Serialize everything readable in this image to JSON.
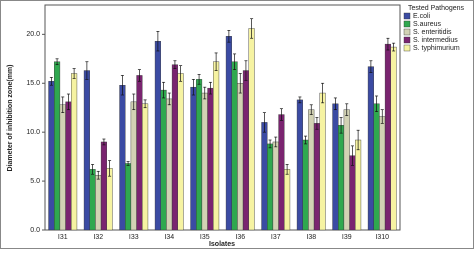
{
  "chart_data": {
    "type": "bar",
    "y_label": "Diameter of inhibition zone(mm)",
    "x_label": "Isolates",
    "legend_title": "Tested Pathogens",
    "legend": "right",
    "categories": [
      "I31",
      "I32",
      "I33",
      "I34",
      "I35",
      "I36",
      "I37",
      "I38",
      "I39",
      "I310"
    ],
    "series": [
      {
        "name": "E.coli",
        "color": "#3b4ba3",
        "values": [
          15.2,
          16.3,
          14.8,
          19.3,
          14.6,
          19.8,
          11.0,
          13.3,
          12.9,
          16.7
        ],
        "errors": [
          0.4,
          0.9,
          1.0,
          1.0,
          0.8,
          0.6,
          1.0,
          0.3,
          0.6,
          0.6
        ]
      },
      {
        "name": "S.aureus",
        "color": "#2fa84f",
        "values": [
          17.2,
          6.2,
          6.8,
          14.3,
          15.4,
          17.2,
          8.8,
          9.2,
          10.7,
          12.9
        ],
        "errors": [
          0.3,
          0.5,
          0.2,
          0.8,
          0.5,
          0.8,
          0.4,
          0.4,
          0.8,
          0.8
        ]
      },
      {
        "name": "S. enteritidis",
        "color": "#d2d2b4",
        "values": [
          12.8,
          5.6,
          13.1,
          13.4,
          14.0,
          15.0,
          9.0,
          12.3,
          12.3,
          11.6
        ],
        "errors": [
          0.8,
          0.4,
          0.8,
          0.6,
          0.6,
          1.0,
          0.5,
          0.5,
          0.6,
          0.7
        ]
      },
      {
        "name": "S. intermedius",
        "color": "#7a2470",
        "values": [
          13.1,
          9.0,
          15.8,
          16.9,
          14.5,
          16.3,
          11.8,
          10.9,
          7.6,
          19.0
        ],
        "errors": [
          0.8,
          0.3,
          0.6,
          0.4,
          0.6,
          1.0,
          0.6,
          0.6,
          1.0,
          0.6
        ]
      },
      {
        "name": "S. typhimurium",
        "color": "#f6f3a2",
        "values": [
          16.0,
          6.3,
          12.9,
          16.0,
          17.2,
          20.6,
          6.2,
          14.0,
          9.2,
          18.7
        ],
        "errors": [
          0.5,
          0.8,
          0.4,
          0.8,
          0.9,
          1.0,
          0.5,
          1.0,
          1.0,
          0.4
        ]
      }
    ],
    "ylim": [
      0,
      23
    ],
    "yticks": [
      {
        "value": 0,
        "label": "0.0"
      },
      {
        "value": 5,
        "label": "5.0"
      },
      {
        "value": 10,
        "label": "10.0"
      },
      {
        "value": 15,
        "label": "15.0"
      },
      {
        "value": 20,
        "label": "20.0"
      }
    ]
  }
}
